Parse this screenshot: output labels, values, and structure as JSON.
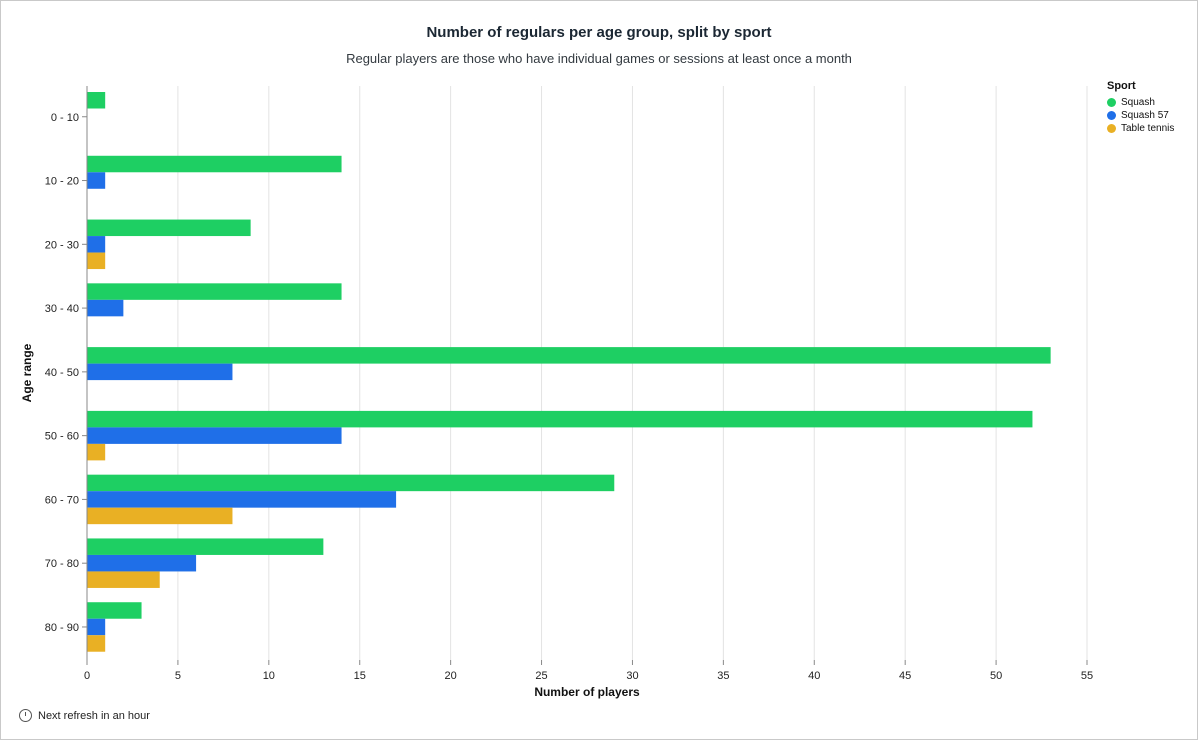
{
  "footer": {
    "refresh_text": "Next refresh in an hour"
  },
  "chart_data": {
    "type": "bar",
    "orientation": "horizontal",
    "title": "Number of regulars per age group, split by sport",
    "subtitle": "Regular players are those who have individual games or sessions at least once a month",
    "xlabel": "Number of players",
    "ylabel": "Age range",
    "xlim": [
      0,
      55
    ],
    "xticks": [
      "0",
      "5",
      "10",
      "15",
      "20",
      "25",
      "30",
      "35",
      "40",
      "45",
      "50",
      "55"
    ],
    "grid": true,
    "categories": [
      "0 - 10",
      "10 - 20",
      "20 - 30",
      "30 - 40",
      "40 - 50",
      "50 - 60",
      "60 - 70",
      "70 - 80",
      "80 - 90"
    ],
    "legend": {
      "title": "Sport",
      "placement": "top-right"
    },
    "series": [
      {
        "name": "Squash",
        "color": "#1ecf63",
        "values": [
          1,
          14,
          9,
          14,
          53,
          52,
          29,
          13,
          3
        ]
      },
      {
        "name": "Squash 57",
        "color": "#1f6fe8",
        "values": [
          0,
          1,
          1,
          2,
          8,
          14,
          17,
          6,
          1
        ]
      },
      {
        "name": "Table tennis",
        "color": "#e9b024",
        "values": [
          0,
          0,
          1,
          0,
          0,
          1,
          8,
          4,
          1
        ]
      }
    ]
  }
}
